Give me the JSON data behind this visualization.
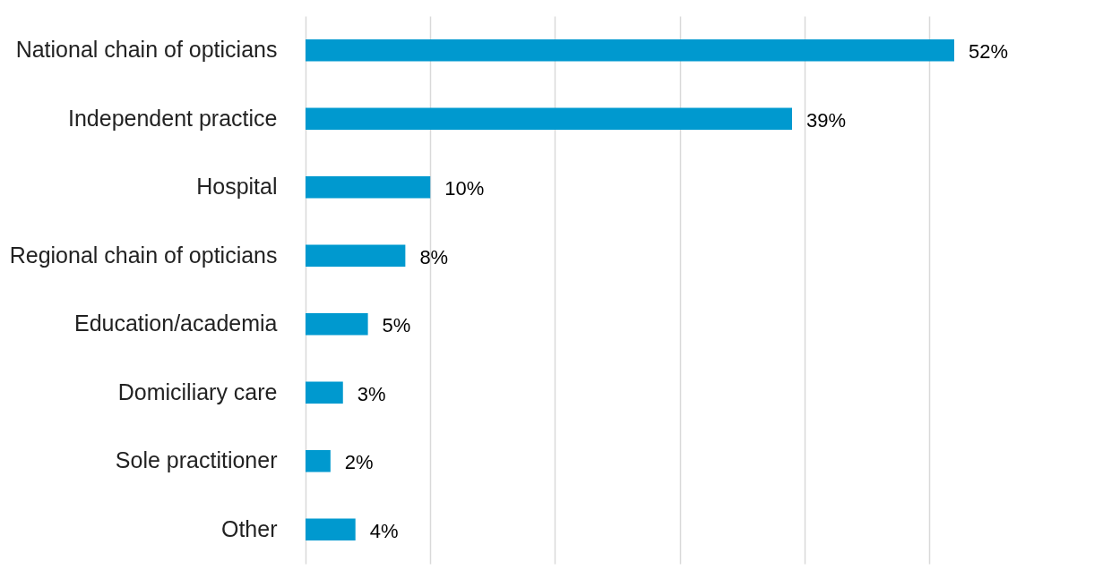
{
  "chart_data": {
    "type": "bar",
    "orientation": "horizontal",
    "categories": [
      "National chain of opticians",
      "Independent practice",
      "Hospital",
      "Regional chain of opticians",
      "Education/academia",
      "Domiciliary care",
      "Sole practitioner",
      "Other"
    ],
    "values": [
      52,
      39,
      10,
      8,
      5,
      3,
      2,
      4
    ],
    "value_labels": [
      "52%",
      "39%",
      "10%",
      "8%",
      "5%",
      "3%",
      "2%",
      "4%"
    ],
    "color": "#0099cf",
    "xticks": [
      {
        "value": 0,
        "label": null
      },
      {
        "value": 10,
        "label": null
      },
      {
        "value": 20,
        "label": null
      },
      {
        "value": 30,
        "label": null
      },
      {
        "value": 40,
        "label": null
      },
      {
        "value": 50,
        "label": null
      }
    ],
    "grid": "x",
    "tick_labels": "y"
  }
}
